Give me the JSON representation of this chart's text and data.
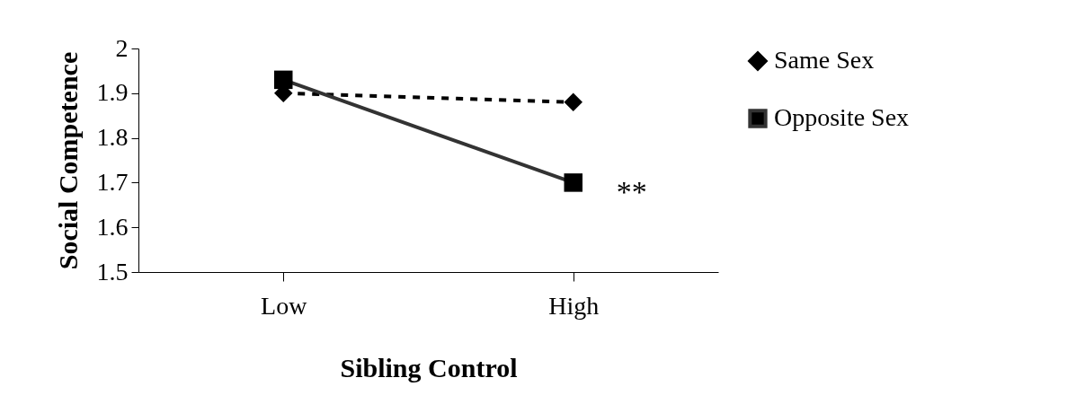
{
  "chart_data": {
    "type": "line",
    "xlabel": "Sibling Control",
    "ylabel": "Social Competence",
    "categories": [
      "Low",
      "High"
    ],
    "series": [
      {
        "name": "Same Sex",
        "color": "#000000",
        "values": [
          1.9,
          1.88
        ],
        "marker": "diamond",
        "line_style": "dashed"
      },
      {
        "name": "Opposite Sex",
        "color": "#333333",
        "values": [
          1.93,
          1.7
        ],
        "marker": "square",
        "line_style": "solid"
      }
    ],
    "ylim": [
      1.5,
      2
    ],
    "yticks": [
      1.5,
      1.6,
      1.7,
      1.8,
      1.9,
      2
    ],
    "grid": false,
    "legend": "right",
    "annotations": [
      {
        "text": "**",
        "x": "High",
        "y": 1.7
      }
    ]
  }
}
